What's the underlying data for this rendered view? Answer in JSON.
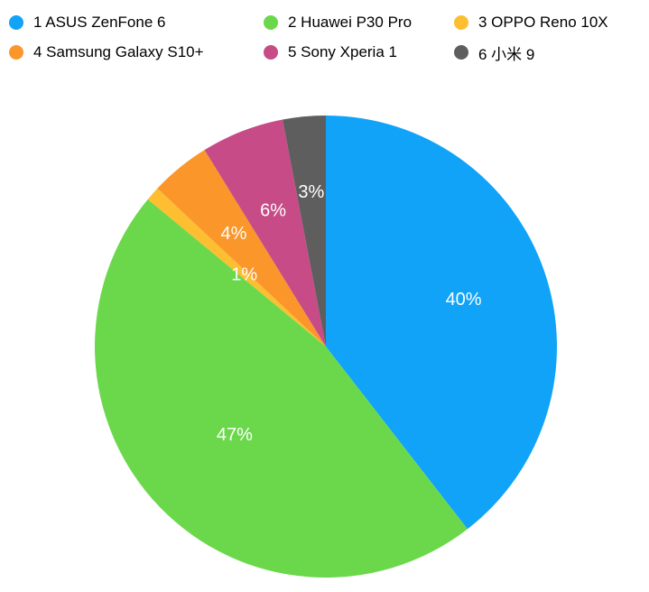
{
  "chart_data": {
    "type": "pie",
    "title": "",
    "legend_position": "top",
    "slices": [
      {
        "label": "1 ASUS ZenFone 6",
        "value": 39.5,
        "data_label": "40%",
        "color": "#10A3F8"
      },
      {
        "label": "2 Huawei P30 Pro",
        "value": 46.5,
        "data_label": "47%",
        "color": "#6BD84C"
      },
      {
        "label": "3 OPPO Reno 10X",
        "value": 1.0,
        "data_label": "1%",
        "color": "#FDBE32"
      },
      {
        "label": "4 Samsung Galaxy S10+",
        "value": 4.2,
        "data_label": "4%",
        "color": "#FB962B"
      },
      {
        "label": "5 Sony Xperia 1",
        "value": 5.8,
        "data_label": "6%",
        "color": "#C64B87"
      },
      {
        "label": "6 小米 9",
        "value": 3.0,
        "data_label": "3%",
        "color": "#5E5E5E"
      }
    ]
  }
}
